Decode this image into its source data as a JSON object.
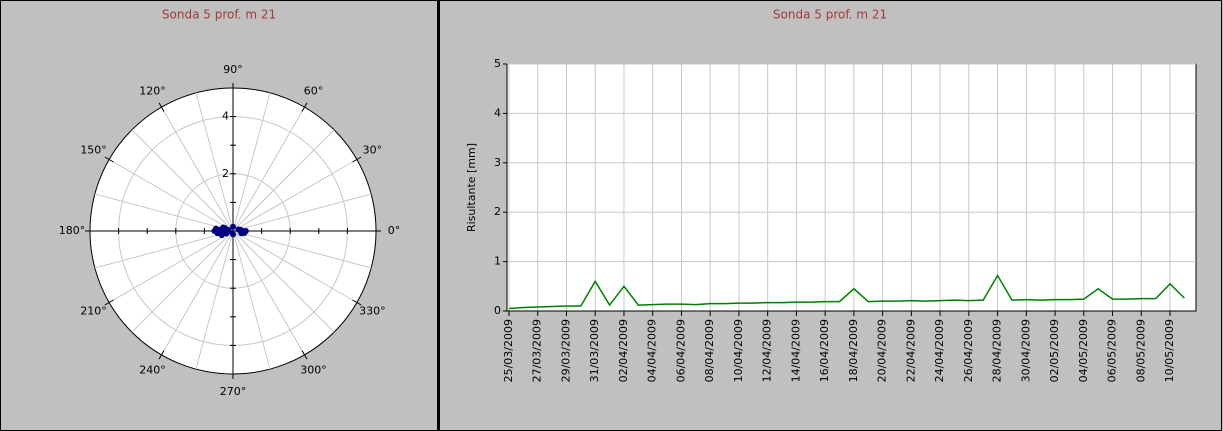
{
  "chart_data": [
    {
      "type": "polar",
      "title": "Sonda 5 prof. m 21",
      "rlim": [
        0,
        5
      ],
      "rticks": [
        {
          "value": 2,
          "label": "2"
        },
        {
          "value": 4,
          "label": "4"
        }
      ],
      "thetaticks": [
        {
          "value": 0,
          "label": "0°"
        },
        {
          "value": 30,
          "label": "30°"
        },
        {
          "value": 60,
          "label": "60°"
        },
        {
          "value": 90,
          "label": "90°"
        },
        {
          "value": 120,
          "label": "120°"
        },
        {
          "value": 150,
          "label": "150°"
        },
        {
          "value": 180,
          "label": "180°"
        },
        {
          "value": 210,
          "label": "210°"
        },
        {
          "value": 240,
          "label": "240°"
        },
        {
          "value": 270,
          "label": "270°"
        },
        {
          "value": 300,
          "label": "300°"
        },
        {
          "value": 330,
          "label": "330°"
        }
      ],
      "color": "#000080",
      "theta": [
        180,
        175,
        185,
        170,
        190,
        178,
        182,
        195,
        165,
        200,
        160,
        188,
        172,
        5,
        355,
        10,
        350,
        0,
        15,
        345,
        180,
        176,
        184,
        168,
        192,
        90,
        270,
        200,
        160,
        180
      ],
      "r": [
        0.3,
        0.35,
        0.32,
        0.4,
        0.38,
        0.5,
        0.45,
        0.3,
        0.28,
        0.25,
        0.3,
        0.55,
        0.6,
        0.3,
        0.35,
        0.25,
        0.4,
        0.45,
        0.2,
        0.3,
        0.15,
        0.2,
        0.22,
        0.18,
        0.2,
        0.15,
        0.12,
        0.42,
        0.36,
        0.65
      ]
    },
    {
      "type": "line",
      "title": "Sonda 5 prof. m 21",
      "ylabel": "Risultante [mm]",
      "categories": [
        "25/03/2009",
        null,
        "27/03/2009",
        null,
        "29/03/2009",
        null,
        "31/03/2009",
        null,
        "02/04/2009",
        null,
        "04/04/2009",
        null,
        "06/04/2009",
        null,
        "08/04/2009",
        null,
        "10/04/2009",
        null,
        "12/04/2009",
        null,
        "14/04/2009",
        null,
        "16/04/2009",
        null,
        "18/04/2009",
        null,
        "20/04/2009",
        null,
        "22/04/2009",
        null,
        "24/04/2009",
        null,
        "26/04/2009",
        null,
        "28/04/2009",
        null,
        "30/04/2009",
        null,
        "02/05/2009",
        null,
        "04/05/2009",
        null,
        "06/05/2009",
        null,
        "08/05/2009",
        null,
        "10/05/2009",
        null
      ],
      "values": [
        0.05,
        0.07,
        0.08,
        0.09,
        0.1,
        0.1,
        0.6,
        0.12,
        0.5,
        0.12,
        0.13,
        0.14,
        0.14,
        0.13,
        0.15,
        0.15,
        0.16,
        0.16,
        0.17,
        0.17,
        0.18,
        0.18,
        0.19,
        0.19,
        0.45,
        0.19,
        0.2,
        0.2,
        0.21,
        0.2,
        0.21,
        0.22,
        0.21,
        0.22,
        0.72,
        0.22,
        0.23,
        0.22,
        0.23,
        0.23,
        0.24,
        0.45,
        0.24,
        0.24,
        0.25,
        0.25,
        0.55,
        0.26
      ],
      "color": "#008000",
      "ylim": [
        0,
        5
      ],
      "yticks": [
        0,
        1,
        2,
        3,
        4,
        5
      ],
      "grid": true
    }
  ]
}
